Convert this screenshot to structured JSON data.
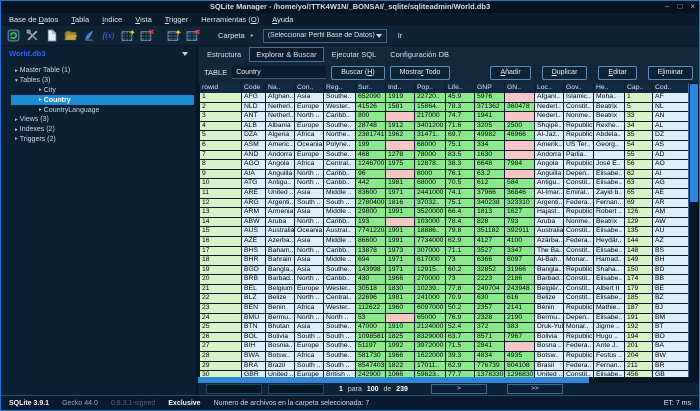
{
  "window": {
    "title": "SQLite Manager - /home/yo/!TTK4W1N/_BONSAI/_sqlite/sqliteadmin/World.db3",
    "minimize": "–",
    "maximize": "□",
    "close": "×"
  },
  "menubar": {
    "items": [
      {
        "t": "Base de Datos",
        "u": 8
      },
      {
        "t": "Tabla",
        "u": 0
      },
      {
        "t": "Indice",
        "u": 0
      },
      {
        "t": "Vista",
        "u": 0
      },
      {
        "t": "Trigger",
        "u": 0
      },
      {
        "t": "Herramientas (O)",
        "u": 14
      },
      {
        "t": "Ayuda",
        "u": 0
      }
    ]
  },
  "toolbar": {
    "icons": [
      "connect-db-icon",
      "tools-icon",
      "new-db-icon",
      "open-db-icon",
      "import-icon",
      "fx-icon",
      "table-add-icon",
      "table-drop-icon",
      "record-add-icon",
      "record-delete-icon"
    ],
    "fx_text": "f(x)",
    "folder_label": "Carpeta",
    "profile_value": "(Seleccionar Perfil Base de Datos)",
    "go_label": "Ir"
  },
  "sidebar": {
    "db_name": "World.db3",
    "tree": [
      {
        "label": "Master Table (1)",
        "level": 0,
        "expanded": false,
        "selected": false
      },
      {
        "label": "Tables (3)",
        "level": 0,
        "expanded": true,
        "selected": false
      },
      {
        "label": "City",
        "level": 1,
        "expanded": false,
        "selected": false
      },
      {
        "label": "Country",
        "level": 1,
        "expanded": false,
        "selected": true
      },
      {
        "label": "CountryLanguage",
        "level": 1,
        "expanded": false,
        "selected": false
      },
      {
        "label": "Views (3)",
        "level": 0,
        "expanded": false,
        "selected": false
      },
      {
        "label": "Indexes (2)",
        "level": 0,
        "expanded": false,
        "selected": false
      },
      {
        "label": "Triggers (2)",
        "level": 0,
        "expanded": false,
        "selected": false
      }
    ]
  },
  "tabs": {
    "items": [
      "Estructura",
      "Explorar & Buscar",
      "Ejecutar SQL",
      "Configuración DB"
    ],
    "active_index": 1
  },
  "browse": {
    "table_label": "TABLE",
    "table_value": "Country",
    "search_button": {
      "t": "Buscar (H)",
      "u": 8
    },
    "show_all_button": {
      "t": "Mostrar Todo",
      "u": 6
    },
    "add_button": {
      "t": "Añadir",
      "u": 0
    },
    "duplicate_button": {
      "t": "Duplicar",
      "u": 0
    },
    "edit_button": {
      "t": "Editar",
      "u": 0
    },
    "delete_button": {
      "t": "Eliminar",
      "u": 1
    }
  },
  "grid": {
    "columns": [
      "rowid",
      "Code",
      "Na..",
      "Con..",
      "Reg..",
      "Sur..",
      "Ind..",
      "Pop..",
      "Life..",
      "GNP",
      "GN..",
      "Loc..",
      "Gov..",
      "He..",
      "Cap..",
      "Cod.."
    ],
    "col_types": [
      "rid",
      "txt",
      "txt",
      "txt",
      "txt",
      "num",
      "num",
      "num",
      "num",
      "num",
      "num",
      "txt",
      "txt",
      "txt",
      "rid",
      "txt"
    ],
    "rows": [
      [
        "1",
        "AFG",
        "Afghan..",
        "Asia",
        "Southe..",
        "652090",
        "1919",
        "22720..",
        "45.9",
        "5976",
        null,
        "Afgani..",
        "Islamic..",
        "Moha..",
        "1",
        "AF"
      ],
      [
        "2",
        "NLD",
        "Netherl..",
        "Europe",
        "Wester..",
        "41526",
        "1581",
        "15864..",
        "78.3",
        "371362",
        "360478",
        "Nederl..",
        "Constit..",
        "Beatrix",
        "5",
        "NL"
      ],
      [
        "3",
        "ANT",
        "Netherl..",
        "North ..",
        "Caribb..",
        "800",
        null,
        "217000",
        "74.7",
        "1941",
        null,
        "Nederl..",
        "Nonme..",
        "Beatrix",
        "33",
        "AN"
      ],
      [
        "4",
        "ALB",
        "Albania",
        "Europe",
        "Southe..",
        "28748",
        "1912",
        "3401200",
        "71.6",
        "3205",
        "2500",
        "Shqipë..",
        "Republic",
        "Rexhe..",
        "34",
        "AL"
      ],
      [
        "5",
        "DZA",
        "Algeria",
        "Africa",
        "Northe..",
        "2381741",
        "1962",
        "31471..",
        "69.7",
        "49982",
        "46966",
        "Al-Jaz..",
        "Republic",
        "Abdela..",
        "35",
        "DZ"
      ],
      [
        "6",
        "ASM",
        "Americ..",
        "Oceania",
        "Polyne..",
        "199",
        null,
        "68000",
        "75.1",
        "334",
        null,
        "Amerik..",
        "US Ter..",
        "Georg..",
        "54",
        "AS"
      ],
      [
        "7",
        "AND",
        "Andorra",
        "Europe",
        "Southe..",
        "468",
        "1278",
        "78000",
        "83.5",
        "1630",
        null,
        "Andorra",
        "Parlia..",
        "",
        "55",
        "AD"
      ],
      [
        "8",
        "AGO",
        "Angola",
        "Africa",
        "Central..",
        "1246700",
        "1975",
        "12878..",
        "38.3",
        "6648",
        "7984",
        "Angola",
        "Republic",
        "José E..",
        "56",
        "AO"
      ],
      [
        "9",
        "AIA",
        "Anguilla",
        "North ..",
        "Caribb..",
        "96",
        null,
        "8000",
        "76.1",
        "63.2",
        null,
        "Anguilla",
        "Depen..",
        "Elisabe..",
        "62",
        "AI"
      ],
      [
        "10",
        "ATG",
        "Antigu..",
        "North ..",
        "Caribb..",
        "442",
        "1981",
        "68000",
        "70.5",
        "612",
        "584",
        "Antigu..",
        "Constit..",
        "Elisabe..",
        "63",
        "AG"
      ],
      [
        "11",
        "ARE",
        "United ..",
        "Asia",
        "Middle ..",
        "83600",
        "1971",
        "2441000",
        "74.1",
        "37966",
        "36846",
        "Al-Imar..",
        "Emirat..",
        "Zayid b..",
        "65",
        "AE"
      ],
      [
        "12",
        "ARG",
        "Argenti..",
        "South ..",
        "South ..",
        "2780400",
        "1816",
        "37032..",
        "75.1",
        "340238",
        "323310",
        "Argenti..",
        "Federa..",
        "Fernan..",
        "69",
        "AR"
      ],
      [
        "13",
        "ARM",
        "Armenia",
        "Asia",
        "Middle ..",
        "29800",
        "1991",
        "3520000",
        "66.4",
        "1813",
        "1627",
        "Hajast..",
        "Republic",
        "Robert ..",
        "126",
        "AM"
      ],
      [
        "14",
        "ABW",
        "Aruba",
        "North ..",
        "Caribb..",
        "193",
        null,
        "103000",
        "78.4",
        "828",
        "793",
        "Aruba",
        "Nonme..",
        "Beatrix",
        "129",
        "AW"
      ],
      [
        "15",
        "AUS",
        "Australia",
        "Oceania",
        "Austral..",
        "7741220",
        "1901",
        "18886..",
        "79.8",
        "351182",
        "392911",
        "Australia",
        "Constit..",
        "Elisabe..",
        "135",
        "AU"
      ],
      [
        "16",
        "AZE",
        "Azerba..",
        "Asia",
        "Middle ..",
        "86600",
        "1991",
        "7734000",
        "62.9",
        "4127",
        "4100",
        "Azärba..",
        "Federa..",
        "Heydär..",
        "144",
        "AZ"
      ],
      [
        "17",
        "BHS",
        "Baham..",
        "North ..",
        "Caribb..",
        "13878",
        "1973",
        "307000",
        "71.1",
        "3527",
        "3347",
        "The Ba..",
        "Constit..",
        "Elisabe..",
        "148",
        "BS"
      ],
      [
        "18",
        "BHR",
        "Bahrain",
        "Asia",
        "Middle ..",
        "694",
        "1971",
        "617000",
        "73",
        "6366",
        "6097",
        "Al-Bah..",
        "Monar..",
        "Hamad..",
        "149",
        "BH"
      ],
      [
        "19",
        "BGD",
        "Bangla..",
        "Asia",
        "Southe..",
        "143998",
        "1971",
        "12915..",
        "60.2",
        "32852",
        "31966",
        "Bangla..",
        "Republic",
        "Shaha..",
        "150",
        "BD"
      ],
      [
        "20",
        "BRB",
        "Barbad..",
        "North ..",
        "Caribb..",
        "430",
        "1966",
        "270000",
        "73",
        "2223",
        "2186",
        "Barbad..",
        "Constit..",
        "Elisabe..",
        "174",
        "BB"
      ],
      [
        "21",
        "BEL",
        "Belgium",
        "Europe",
        "Wester..",
        "30518",
        "1830",
        "10239..",
        "77.8",
        "249704",
        "243948",
        "België/..",
        "Constit..",
        "Albert II",
        "179",
        "BE"
      ],
      [
        "22",
        "BLZ",
        "Belize",
        "North ..",
        "Central..",
        "22696",
        "1981",
        "241000",
        "70.9",
        "630",
        "616",
        "Belize",
        "Constit..",
        "Elisabe..",
        "185",
        "BZ"
      ],
      [
        "23",
        "BEN",
        "Benin",
        "Africa",
        "Wester..",
        "112622",
        "1960",
        "6097000",
        "50.2",
        "2357",
        "2141",
        "Bénin",
        "Republic",
        "Mathie..",
        "187",
        "BJ"
      ],
      [
        "24",
        "BMU",
        "Bermu..",
        "North ..",
        "North ..",
        "53",
        null,
        "65000",
        "76.9",
        "2328",
        "2190",
        "Bermu..",
        "Depen..",
        "Elisabe..",
        "191",
        "BM"
      ],
      [
        "25",
        "BTN",
        "Bhutan",
        "Asia",
        "Southe..",
        "47000",
        "1910",
        "2124000",
        "52.4",
        "372",
        "383",
        "Druk-Yul",
        "Monar..",
        "Jigme ..",
        "192",
        "BT"
      ],
      [
        "26",
        "BOL",
        "Bolivia",
        "South ..",
        "South ..",
        "1098581",
        "1825",
        "8329000",
        "63.7",
        "8571",
        "7967",
        "Bolivia",
        "Republic",
        "Hugo ..",
        "194",
        "BO"
      ],
      [
        "27",
        "BIH",
        "Bosnia..",
        "Europe",
        "Southe..",
        "51197",
        "1992",
        "3972000",
        "71.5",
        "2841",
        null,
        "Bosna ..",
        "Federa..",
        "Ante J..",
        "201",
        "BA"
      ],
      [
        "28",
        "BWA",
        "Botsw..",
        "Africa",
        "Southe..",
        "581730",
        "1966",
        "1622000",
        "39.3",
        "4834",
        "4935",
        "Botsw..",
        "Republic",
        "Festus ..",
        "204",
        "BW"
      ],
      [
        "29",
        "BRA",
        "Brazil",
        "South ..",
        "South ..",
        "8547403",
        "1822",
        "17011..",
        "62.9",
        "776739",
        "804108",
        "Brasil",
        "Federa..",
        "Fernan..",
        "211",
        "BR"
      ],
      [
        "30",
        "GBR",
        "United ..",
        "Europe",
        "British ..",
        "242900",
        "1066",
        "59623..",
        "77.7",
        "1378330",
        "1296830",
        "United ..",
        "Constit..",
        "Elisabe..",
        "456",
        "GB"
      ]
    ]
  },
  "pagination": {
    "parts": [
      {
        "t": "1",
        "b": true
      },
      {
        "t": "para",
        "b": false
      },
      {
        "t": "100",
        "b": true
      },
      {
        "t": "de",
        "b": false
      },
      {
        "t": "239",
        "b": true
      }
    ],
    "next_label": ">",
    "last_label": ">>"
  },
  "statusbar": {
    "items": [
      {
        "t": "SQLite 3.9.1",
        "style": "bold"
      },
      {
        "t": "Gecko 44.0",
        "style": "muted"
      },
      {
        "t": "0.8.3.1-signed",
        "style": "dim"
      },
      {
        "t": "Exclusive",
        "style": "bold"
      },
      {
        "t": "Numero de archivos en la carpeta seleccionada: 7",
        "style": "normal"
      }
    ],
    "et": "ET: 7 ms"
  }
}
